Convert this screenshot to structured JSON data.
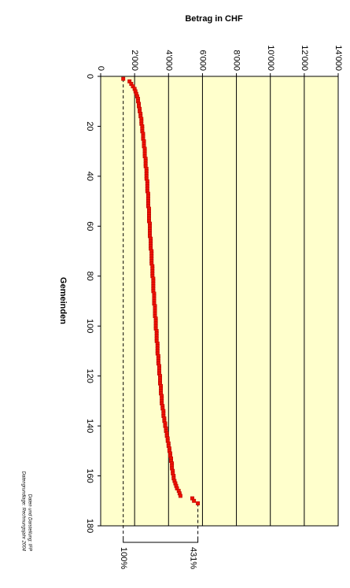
{
  "chart_data": {
    "type": "scatter",
    "title": "Betrag in CHF",
    "x_label": "Gemeinden",
    "source_lines": [
      "Daten und Darstellung: IFP",
      "Datengrundlage: Rechnungsjahr 2004"
    ],
    "annotations": [
      "100%",
      "431%"
    ],
    "xlim": [
      0,
      180
    ],
    "xticks": [
      0,
      20,
      40,
      60,
      80,
      100,
      120,
      140,
      160,
      180
    ],
    "ylim": [
      0,
      14000
    ],
    "yticks": [
      0,
      {
        "value": 2000,
        "label": "2'000"
      },
      {
        "value": 4000,
        "label": "4'000"
      },
      {
        "value": 6000,
        "label": "6'000"
      },
      {
        "value": 8000,
        "label": "8'000"
      },
      {
        "value": 10000,
        "label": "10'000"
      },
      {
        "value": 12000,
        "label": "12'000"
      },
      {
        "value": 14000,
        "label": "14'000"
      }
    ],
    "grid": true,
    "background": "#ffffcc",
    "series": [
      {
        "name": "Betrag",
        "color": "#ee1100",
        "x": [
          1,
          2,
          3,
          4,
          5,
          6,
          7,
          8,
          9,
          10,
          11,
          12,
          13,
          14,
          15,
          16,
          17,
          18,
          19,
          20,
          21,
          22,
          23,
          24,
          25,
          26,
          27,
          28,
          29,
          30,
          31,
          32,
          33,
          34,
          35,
          36,
          37,
          38,
          39,
          40,
          41,
          42,
          43,
          44,
          45,
          46,
          47,
          48,
          49,
          50,
          51,
          52,
          53,
          54,
          55,
          56,
          57,
          58,
          59,
          60,
          61,
          62,
          63,
          64,
          65,
          66,
          67,
          68,
          69,
          70,
          71,
          72,
          73,
          74,
          75,
          76,
          77,
          78,
          79,
          80,
          81,
          82,
          83,
          84,
          85,
          86,
          87,
          88,
          89,
          90,
          91,
          92,
          93,
          94,
          95,
          96,
          97,
          98,
          99,
          100,
          101,
          102,
          103,
          104,
          105,
          106,
          107,
          108,
          109,
          110,
          111,
          112,
          113,
          114,
          115,
          116,
          117,
          118,
          119,
          120,
          121,
          122,
          123,
          124,
          125,
          126,
          127,
          128,
          129,
          130,
          131,
          132,
          133,
          134,
          135,
          136,
          137,
          138,
          139,
          140,
          141,
          142,
          143,
          144,
          145,
          146,
          147,
          148,
          149,
          150,
          151,
          152,
          153,
          154,
          155,
          156,
          157,
          158,
          159,
          160,
          161,
          162,
          163,
          164,
          165,
          166,
          167,
          168,
          169,
          170,
          171
        ],
        "values": [
          1330,
          1700,
          1800,
          1900,
          2000,
          2050,
          2100,
          2150,
          2200,
          2200,
          2250,
          2250,
          2300,
          2300,
          2350,
          2350,
          2400,
          2400,
          2400,
          2450,
          2450,
          2450,
          2500,
          2500,
          2500,
          2550,
          2550,
          2550,
          2600,
          2600,
          2600,
          2600,
          2650,
          2650,
          2650,
          2650,
          2700,
          2700,
          2700,
          2700,
          2700,
          2750,
          2750,
          2750,
          2750,
          2750,
          2800,
          2800,
          2800,
          2800,
          2800,
          2800,
          2850,
          2850,
          2850,
          2850,
          2850,
          2850,
          2900,
          2900,
          2900,
          2900,
          2900,
          2900,
          2950,
          2950,
          2950,
          2950,
          2950,
          3000,
          3000,
          3000,
          3000,
          3000,
          3000,
          3050,
          3050,
          3050,
          3050,
          3050,
          3100,
          3100,
          3100,
          3100,
          3100,
          3100,
          3150,
          3150,
          3150,
          3150,
          3150,
          3200,
          3200,
          3200,
          3200,
          3200,
          3250,
          3250,
          3250,
          3250,
          3250,
          3300,
          3300,
          3300,
          3300,
          3300,
          3350,
          3350,
          3350,
          3350,
          3350,
          3400,
          3400,
          3400,
          3400,
          3450,
          3450,
          3450,
          3450,
          3500,
          3500,
          3500,
          3500,
          3550,
          3550,
          3550,
          3550,
          3600,
          3600,
          3600,
          3600,
          3650,
          3650,
          3700,
          3700,
          3700,
          3750,
          3750,
          3800,
          3800,
          3850,
          3850,
          3900,
          3900,
          3950,
          3950,
          4000,
          4000,
          4050,
          4050,
          4100,
          4100,
          4150,
          4150,
          4200,
          4200,
          4200,
          4250,
          4250,
          4300,
          4300,
          4350,
          4400,
          4450,
          4500,
          4600,
          4650,
          4700,
          5400,
          5500,
          5730
        ]
      }
    ]
  }
}
